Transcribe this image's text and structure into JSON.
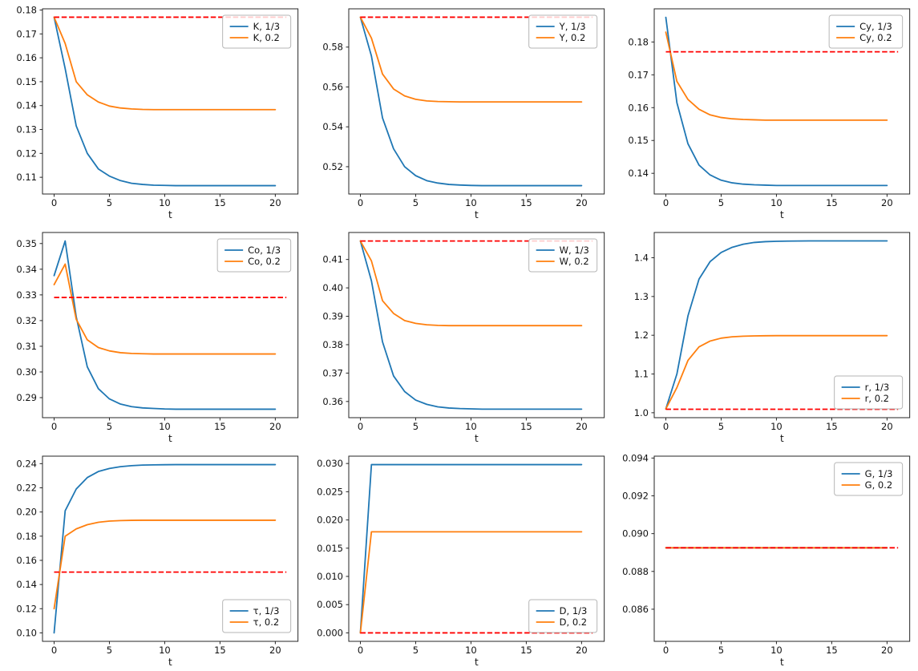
{
  "figure_background": "#ffffff",
  "colors": {
    "blue": "#1f77b4",
    "orange": "#ff7f0e",
    "red_dashed": "#ff0000",
    "spine": "#262626"
  },
  "chart_data": {
    "type": "line",
    "grid": false,
    "xlabel": "t",
    "xlim": [
      -1.05,
      22.05
    ],
    "xticks": [
      0,
      5,
      10,
      15,
      20
    ],
    "xtick_labels": [
      "0",
      "5",
      "10",
      "15",
      "20"
    ],
    "x_shared": [
      0,
      1,
      2,
      3,
      4,
      5,
      6,
      7,
      8,
      9,
      10,
      11,
      12,
      13,
      14,
      15,
      16,
      17,
      18,
      19,
      20
    ],
    "charts": [
      {
        "name": "K",
        "legend_position": "upper-right",
        "ylim": [
          0.103,
          0.1805
        ],
        "yticks": [
          0.11,
          0.12,
          0.13,
          0.14,
          0.15,
          0.16,
          0.17,
          0.18
        ],
        "ytick_labels": [
          "0.11",
          "0.12",
          "0.13",
          "0.14",
          "0.15",
          "0.16",
          "0.17",
          "0.18"
        ],
        "dashed": {
          "y": 0.177,
          "x0": 0,
          "x1": 21
        },
        "series": [
          {
            "name": "K, 1/3",
            "color": "#1f77b4",
            "values": [
              0.177,
              0.1555,
              0.1315,
              0.12,
              0.1135,
              0.1105,
              0.1086,
              0.1075,
              0.107,
              0.1067,
              0.1066,
              0.1065,
              0.1065,
              0.1065,
              0.1065,
              0.1065,
              0.1065,
              0.1065,
              0.1065,
              0.1065,
              0.1065
            ]
          },
          {
            "name": "K, 0.2",
            "color": "#ff7f0e",
            "values": [
              0.177,
              0.166,
              0.15,
              0.1445,
              0.1415,
              0.1398,
              0.139,
              0.1386,
              0.1384,
              0.1383,
              0.1383,
              0.1383,
              0.1383,
              0.1383,
              0.1383,
              0.1383,
              0.1383,
              0.1383,
              0.1383,
              0.1383,
              0.1383
            ]
          }
        ]
      },
      {
        "name": "Y",
        "legend_position": "upper-right",
        "ylim": [
          0.5063,
          0.5992
        ],
        "yticks": [
          0.52,
          0.54,
          0.56,
          0.58
        ],
        "ytick_labels": [
          "0.52",
          "0.54",
          "0.56",
          "0.58"
        ],
        "dashed": {
          "y": 0.595,
          "x0": 0,
          "x1": 21
        },
        "series": [
          {
            "name": "Y, 1/3",
            "color": "#1f77b4",
            "values": [
              0.595,
              0.5755,
              0.5445,
              0.529,
              0.52,
              0.5155,
              0.513,
              0.5118,
              0.5111,
              0.5108,
              0.5106,
              0.5105,
              0.5105,
              0.5105,
              0.5105,
              0.5105,
              0.5105,
              0.5105,
              0.5105,
              0.5105,
              0.5105
            ]
          },
          {
            "name": "Y, 0.2",
            "color": "#ff7f0e",
            "values": [
              0.595,
              0.5845,
              0.5665,
              0.559,
              0.5555,
              0.5538,
              0.553,
              0.5527,
              0.5526,
              0.5525,
              0.5525,
              0.5525,
              0.5525,
              0.5525,
              0.5525,
              0.5525,
              0.5525,
              0.5525,
              0.5525,
              0.5525,
              0.5525
            ]
          }
        ]
      },
      {
        "name": "Cy",
        "legend_position": "upper-right",
        "ylim": [
          0.1337,
          0.1901
        ],
        "yticks": [
          0.14,
          0.15,
          0.16,
          0.17,
          0.18
        ],
        "ytick_labels": [
          "0.14",
          "0.15",
          "0.16",
          "0.17",
          "0.18"
        ],
        "dashed": {
          "y": 0.177,
          "x0": 0,
          "x1": 21
        },
        "series": [
          {
            "name": "Cy, 1/3",
            "color": "#1f77b4",
            "values": [
              0.1875,
              0.1615,
              0.149,
              0.1425,
              0.1395,
              0.1379,
              0.1371,
              0.1367,
              0.1365,
              0.1364,
              0.1363,
              0.1363,
              0.1363,
              0.1363,
              0.1363,
              0.1363,
              0.1363,
              0.1363,
              0.1363,
              0.1363,
              0.1363
            ]
          },
          {
            "name": "Cy, 0.2",
            "color": "#ff7f0e",
            "values": [
              0.183,
              0.168,
              0.1625,
              0.1595,
              0.1578,
              0.157,
              0.1566,
              0.1564,
              0.1563,
              0.1562,
              0.1562,
              0.1562,
              0.1562,
              0.1562,
              0.1562,
              0.1562,
              0.1562,
              0.1562,
              0.1562,
              0.1562,
              0.1562
            ]
          }
        ]
      },
      {
        "name": "Co",
        "legend_position": "upper-right",
        "ylim": [
          0.2822,
          0.3543
        ],
        "yticks": [
          0.29,
          0.3,
          0.31,
          0.32,
          0.33,
          0.34,
          0.35
        ],
        "ytick_labels": [
          "0.29",
          "0.30",
          "0.31",
          "0.32",
          "0.33",
          "0.34",
          "0.35"
        ],
        "dashed": {
          "y": 0.329,
          "x0": 0,
          "x1": 21
        },
        "series": [
          {
            "name": "Co, 1/3",
            "color": "#1f77b4",
            "values": [
              0.3375,
              0.351,
              0.3215,
              0.302,
              0.2935,
              0.2895,
              0.2875,
              0.2865,
              0.286,
              0.2858,
              0.2856,
              0.2855,
              0.2855,
              0.2855,
              0.2855,
              0.2855,
              0.2855,
              0.2855,
              0.2855,
              0.2855,
              0.2855
            ]
          },
          {
            "name": "Co, 0.2",
            "color": "#ff7f0e",
            "values": [
              0.334,
              0.342,
              0.3205,
              0.3125,
              0.3095,
              0.3082,
              0.3075,
              0.3072,
              0.3071,
              0.307,
              0.307,
              0.307,
              0.307,
              0.307,
              0.307,
              0.307,
              0.307,
              0.307,
              0.307,
              0.307,
              0.307
            ]
          }
        ]
      },
      {
        "name": "W",
        "legend_position": "upper-right",
        "ylim": [
          0.3543,
          0.4195
        ],
        "yticks": [
          0.36,
          0.37,
          0.38,
          0.39,
          0.4,
          0.41
        ],
        "ytick_labels": [
          "0.36",
          "0.37",
          "0.38",
          "0.39",
          "0.40",
          "0.41"
        ],
        "dashed": {
          "y": 0.4165,
          "x0": 0,
          "x1": 21
        },
        "series": [
          {
            "name": "W, 1/3",
            "color": "#1f77b4",
            "values": [
              0.4165,
              0.4025,
              0.381,
              0.369,
              0.3635,
              0.3605,
              0.359,
              0.3581,
              0.3577,
              0.3575,
              0.3574,
              0.3573,
              0.3573,
              0.3573,
              0.3573,
              0.3573,
              0.3573,
              0.3573,
              0.3573,
              0.3573,
              0.3573
            ]
          },
          {
            "name": "W, 0.2",
            "color": "#ff7f0e",
            "values": [
              0.4165,
              0.4095,
              0.3955,
              0.391,
              0.3885,
              0.3875,
              0.387,
              0.3868,
              0.3867,
              0.3867,
              0.3867,
              0.3867,
              0.3867,
              0.3867,
              0.3867,
              0.3867,
              0.3867,
              0.3867,
              0.3867,
              0.3867,
              0.3867
            ]
          }
        ]
      },
      {
        "name": "r",
        "legend_position": "lower-right",
        "ylim": [
          0.9873,
          1.4652
        ],
        "yticks": [
          1.0,
          1.1,
          1.2,
          1.3,
          1.4
        ],
        "ytick_labels": [
          "1.0",
          "1.1",
          "1.2",
          "1.3",
          "1.4"
        ],
        "dashed": {
          "y": 1.009,
          "x0": 0,
          "x1": 21
        },
        "series": [
          {
            "name": "r, 1/3",
            "color": "#1f77b4",
            "values": [
              1.01,
              1.1,
              1.25,
              1.345,
              1.39,
              1.4135,
              1.427,
              1.435,
              1.4395,
              1.4415,
              1.4425,
              1.443,
              1.4433,
              1.4435,
              1.4435,
              1.4435,
              1.4435,
              1.4435,
              1.4435,
              1.4435,
              1.4435
            ]
          },
          {
            "name": "r, 0.2",
            "color": "#ff7f0e",
            "values": [
              1.01,
              1.065,
              1.135,
              1.17,
              1.185,
              1.1925,
              1.196,
              1.1975,
              1.1983,
              1.1987,
              1.199,
              1.199,
              1.199,
              1.199,
              1.199,
              1.199,
              1.199,
              1.199,
              1.199,
              1.199,
              1.199
            ]
          }
        ]
      },
      {
        "name": "tau",
        "legend_position": "lower-right",
        "ylim": [
          0.093,
          0.2462
        ],
        "yticks": [
          0.1,
          0.12,
          0.14,
          0.16,
          0.18,
          0.2,
          0.22,
          0.24
        ],
        "ytick_labels": [
          "0.10",
          "0.12",
          "0.14",
          "0.16",
          "0.18",
          "0.20",
          "0.22",
          "0.24"
        ],
        "dashed": {
          "y": 0.1503,
          "x0": 0,
          "x1": 21
        },
        "series": [
          {
            "name": "τ, 1/3",
            "color": "#1f77b4",
            "values": [
              0.1,
              0.201,
              0.219,
              0.2285,
              0.2335,
              0.236,
              0.2375,
              0.2383,
              0.2388,
              0.239,
              0.2391,
              0.2392,
              0.2392,
              0.2392,
              0.2392,
              0.2392,
              0.2392,
              0.2392,
              0.2392,
              0.2392,
              0.2392
            ]
          },
          {
            "name": "τ, 0.2",
            "color": "#ff7f0e",
            "values": [
              0.12,
              0.18,
              0.186,
              0.1895,
              0.1915,
              0.1925,
              0.1929,
              0.1931,
              0.1932,
              0.1932,
              0.1932,
              0.1932,
              0.1932,
              0.1932,
              0.1932,
              0.1932,
              0.1932,
              0.1932,
              0.1932,
              0.1932,
              0.1932
            ]
          }
        ]
      },
      {
        "name": "D",
        "legend_position": "lower-right",
        "ylim": [
          -0.0015,
          0.0313
        ],
        "yticks": [
          0.0,
          0.005,
          0.01,
          0.015,
          0.02,
          0.025,
          0.03
        ],
        "ytick_labels": [
          "0.000",
          "0.005",
          "0.010",
          "0.015",
          "0.020",
          "0.025",
          "0.030"
        ],
        "dashed": {
          "y": 0.0,
          "x0": 0,
          "x1": 21
        },
        "series": [
          {
            "name": "D, 1/3",
            "color": "#1f77b4",
            "values": [
              0.0,
              0.0298,
              0.0298,
              0.0298,
              0.0298,
              0.0298,
              0.0298,
              0.0298,
              0.0298,
              0.0298,
              0.0298,
              0.0298,
              0.0298,
              0.0298,
              0.0298,
              0.0298,
              0.0298,
              0.0298,
              0.0298,
              0.0298,
              0.0298
            ]
          },
          {
            "name": "D, 0.2",
            "color": "#ff7f0e",
            "values": [
              0.0,
              0.0179,
              0.0179,
              0.0179,
              0.0179,
              0.0179,
              0.0179,
              0.0179,
              0.0179,
              0.0179,
              0.0179,
              0.0179,
              0.0179,
              0.0179,
              0.0179,
              0.0179,
              0.0179,
              0.0179,
              0.0179,
              0.0179,
              0.0179
            ]
          }
        ]
      },
      {
        "name": "G",
        "legend_position": "upper-right",
        "ylim": [
          0.0843,
          0.0941
        ],
        "yticks": [
          0.086,
          0.088,
          0.09,
          0.092,
          0.094
        ],
        "ytick_labels": [
          "0.086",
          "0.088",
          "0.090",
          "0.092",
          "0.094"
        ],
        "dashed": {
          "y": 0.08925,
          "x0": 0,
          "x1": 21
        },
        "series": [
          {
            "name": "G, 1/3",
            "color": "#1f77b4",
            "values": [
              0.08925,
              0.08925,
              0.08925,
              0.08925,
              0.08925,
              0.08925,
              0.08925,
              0.08925,
              0.08925,
              0.08925,
              0.08925,
              0.08925,
              0.08925,
              0.08925,
              0.08925,
              0.08925,
              0.08925,
              0.08925,
              0.08925,
              0.08925,
              0.08925
            ]
          },
          {
            "name": "G, 0.2",
            "color": "#ff7f0e",
            "values": [
              0.08925,
              0.08925,
              0.08925,
              0.08925,
              0.08925,
              0.08925,
              0.08925,
              0.08925,
              0.08925,
              0.08925,
              0.08925,
              0.08925,
              0.08925,
              0.08925,
              0.08925,
              0.08925,
              0.08925,
              0.08925,
              0.08925,
              0.08925,
              0.08925
            ]
          }
        ]
      }
    ]
  }
}
